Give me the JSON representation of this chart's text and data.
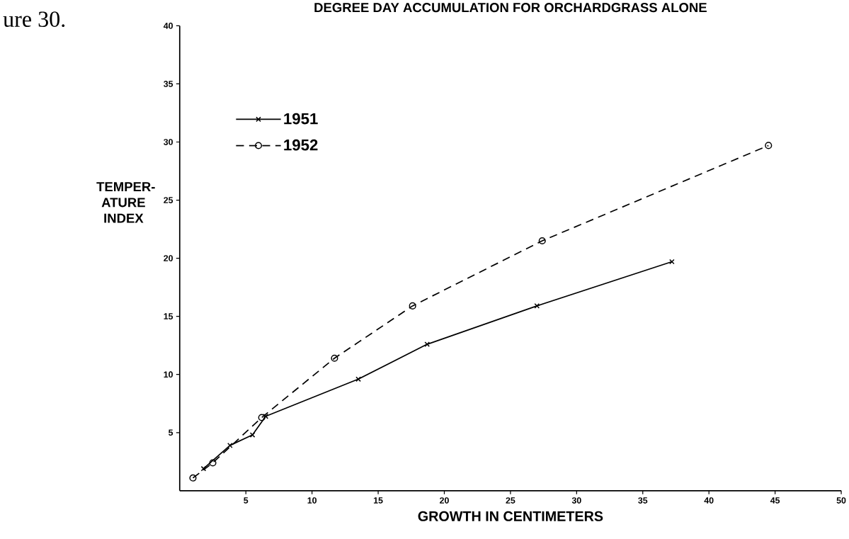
{
  "chart_data": {
    "type": "line",
    "title": "DEGREE DAY ACCUMULATION FOR ORCHARDGRASS ALONE",
    "xlabel": "GROWTH IN CENTIMETERS",
    "ylabel": "TEMPER- ATURE INDEX",
    "annotations": [
      "ure 30."
    ],
    "xlim": [
      0,
      50
    ],
    "ylim": [
      0,
      40
    ],
    "xticks": [
      5,
      10,
      15,
      20,
      25,
      30,
      35,
      40,
      45,
      50
    ],
    "yticks": [
      5,
      10,
      15,
      20,
      25,
      30,
      35,
      40
    ],
    "grid": false,
    "legend": "top left",
    "series": [
      {
        "name": "1951",
        "color": "#000000",
        "marker": "cross",
        "line_style": "solid",
        "x": [
          1.8,
          3.8,
          5.5,
          6.5,
          13.5,
          18.7,
          27.0,
          37.2
        ],
        "values": [
          1.9,
          3.9,
          4.8,
          6.4,
          9.6,
          12.6,
          15.9,
          19.7
        ]
      },
      {
        "name": "1952",
        "color": "#000000",
        "marker": "circle",
        "line_style": "dashed",
        "x": [
          1.0,
          2.5,
          6.2,
          11.7,
          17.6,
          27.4,
          44.5
        ],
        "values": [
          1.1,
          2.4,
          6.3,
          11.4,
          15.9,
          21.5,
          29.7
        ]
      }
    ]
  }
}
